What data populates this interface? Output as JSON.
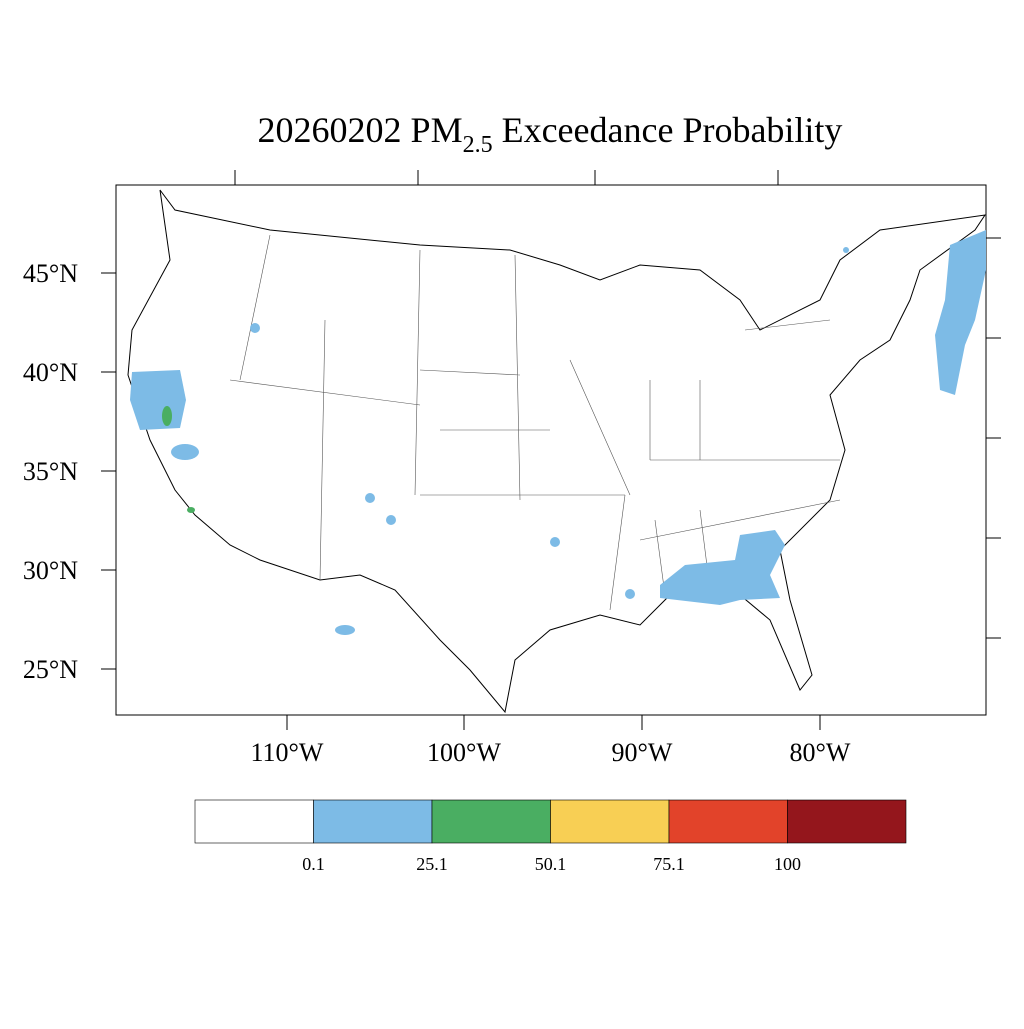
{
  "map": {
    "title": {
      "main": "20260202 PM",
      "subscript": "2.5",
      "rest": "Exceedance Probability"
    },
    "lat_labels": [
      "45°N",
      "40°N",
      "35°N",
      "30°N",
      "25°N"
    ],
    "lon_labels": [
      "110°W",
      "100°W",
      "90°W",
      "80°W"
    ],
    "colorbar": {
      "colors": [
        "#ffffff",
        "#7dbbe6",
        "#4aae62",
        "#f8cf54",
        "#e2432a",
        "#94161c"
      ],
      "labels": [
        0.1,
        25.1,
        50.1,
        75.1,
        100
      ]
    }
  }
}
